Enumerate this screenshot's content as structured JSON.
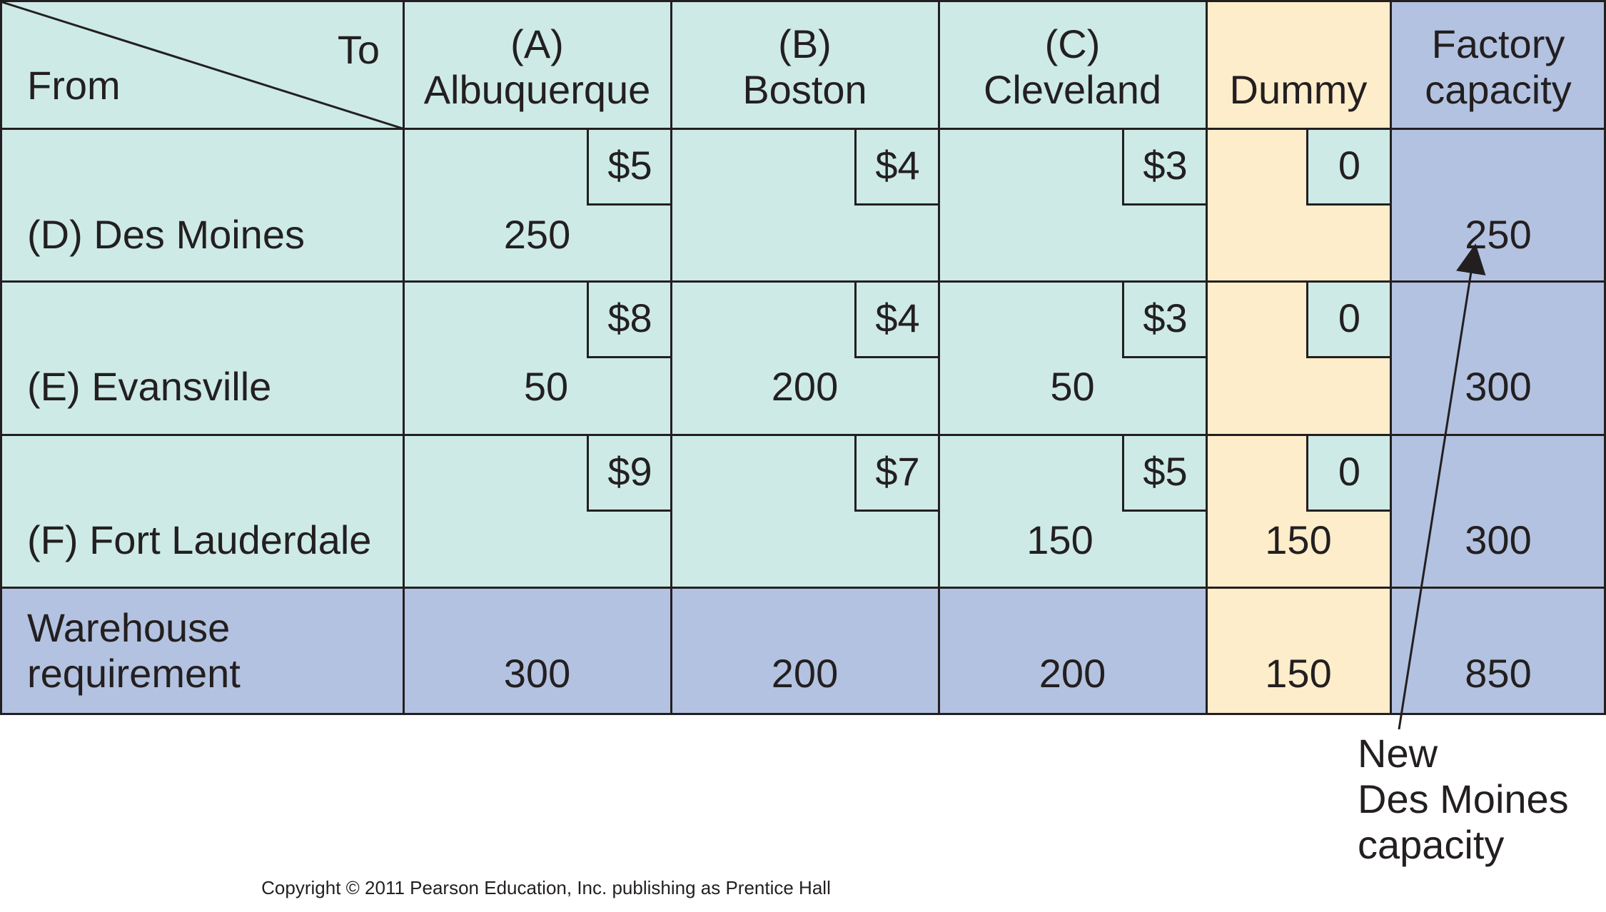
{
  "header": {
    "to_label": "To",
    "from_label": "From",
    "columns": [
      {
        "line1": "(A)",
        "line2": "Albuquerque"
      },
      {
        "line1": "(B)",
        "line2": "Boston"
      },
      {
        "line1": "(C)",
        "line2": "Cleveland"
      },
      {
        "line1": "",
        "line2": "Dummy"
      },
      {
        "line1": "Factory",
        "line2": "capacity"
      }
    ]
  },
  "rows": [
    {
      "label": "(D) Des Moines",
      "costs": [
        "$5",
        "$4",
        "$3",
        "0"
      ],
      "shipments": [
        "250",
        "",
        "",
        ""
      ],
      "capacity": "250"
    },
    {
      "label": "(E) Evansville",
      "costs": [
        "$8",
        "$4",
        "$3",
        "0"
      ],
      "shipments": [
        "50",
        "200",
        "50",
        ""
      ],
      "capacity": "300"
    },
    {
      "label": "(F) Fort Lauderdale",
      "costs": [
        "$9",
        "$7",
        "$5",
        "0"
      ],
      "shipments": [
        "",
        "",
        "150",
        "150"
      ],
      "capacity": "300"
    }
  ],
  "requirement": {
    "line1": "Warehouse",
    "line2": "requirement",
    "values": [
      "300",
      "200",
      "200",
      "150"
    ],
    "total": "850"
  },
  "annotation": {
    "line1": "New",
    "line2": "Des Moines",
    "line3": "capacity"
  },
  "copyright": "Copyright © 2011 Pearson Education, Inc. publishing as Prentice Hall",
  "colors": {
    "grid_line": "#231f20",
    "source_cell": "#cdeae6",
    "dummy_column": "#fdedca",
    "totals": "#b3c2e0"
  }
}
